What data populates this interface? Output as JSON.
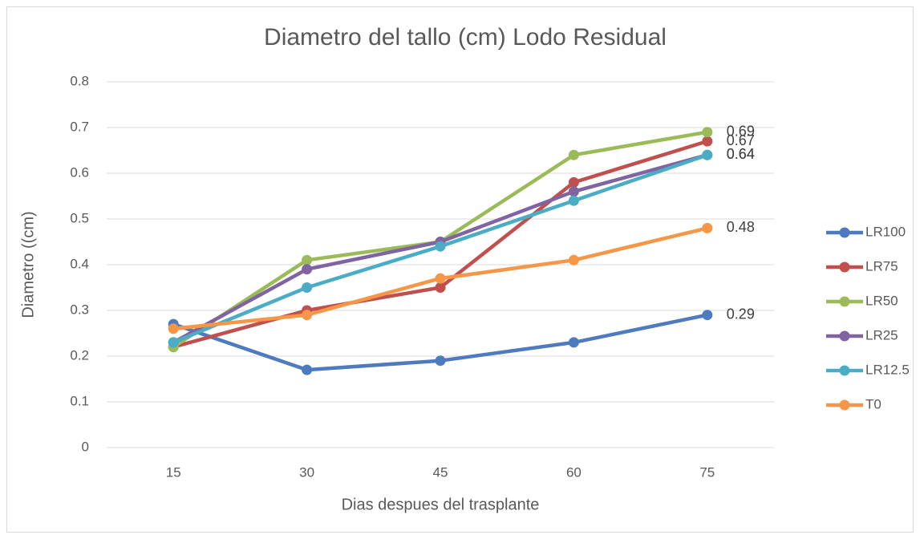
{
  "chart_data": {
    "type": "line",
    "title": "Diametro del tallo (cm) Lodo Residual",
    "x_label": "Dias despues del trasplante",
    "y_label": "Diametro ((cm)",
    "categories": [
      "15",
      "30",
      "45",
      "60",
      "75"
    ],
    "series": [
      {
        "name": "LR100",
        "color": "#4e7bbf",
        "values": [
          0.27,
          0.17,
          0.19,
          0.23,
          0.29
        ]
      },
      {
        "name": "LR75",
        "color": "#c0504d",
        "values": [
          0.22,
          0.3,
          0.35,
          0.58,
          0.67
        ]
      },
      {
        "name": "LR50",
        "color": "#9bbb59",
        "values": [
          0.22,
          0.41,
          0.45,
          0.64,
          0.69
        ]
      },
      {
        "name": "LR25",
        "color": "#8064a2",
        "values": [
          0.23,
          0.39,
          0.45,
          0.56,
          0.64
        ]
      },
      {
        "name": "LR12.5",
        "color": "#4bacc6",
        "values": [
          0.23,
          0.35,
          0.44,
          0.54,
          0.64
        ]
      },
      {
        "name": "T0",
        "color": "#f79646",
        "values": [
          0.26,
          0.29,
          0.37,
          0.41,
          0.48
        ]
      }
    ],
    "ylim": [
      0,
      0.8
    ],
    "yticks": [
      0,
      0.1,
      0.2,
      0.3,
      0.4,
      0.5,
      0.6,
      0.7,
      0.8
    ],
    "grid": true,
    "legend": "right"
  }
}
